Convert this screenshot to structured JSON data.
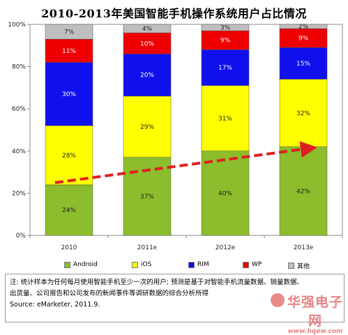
{
  "title": "2010-2013年美国智能手机操作系统用户占比情况",
  "chart_data": {
    "type": "bar",
    "stacked": true,
    "categories": [
      "2010",
      "2011e",
      "2012e",
      "2013e"
    ],
    "series": [
      {
        "name": "Android",
        "color": "#8cbd2c",
        "values": [
          24,
          37,
          40,
          42
        ],
        "labels": [
          "24%",
          "37%",
          "40%",
          "42%"
        ]
      },
      {
        "name": "iOS",
        "color": "#ffff00",
        "values": [
          28,
          29,
          31,
          32
        ],
        "labels": [
          "28%",
          "29%",
          "31%",
          "32%"
        ]
      },
      {
        "name": "RIM",
        "color": "#1010ee",
        "values": [
          30,
          20,
          17,
          15
        ],
        "labels": [
          "30%",
          "20%",
          "17%",
          "15%"
        ]
      },
      {
        "name": "WP",
        "color": "#ee0000",
        "values": [
          11,
          10,
          9,
          9
        ],
        "labels": [
          "11%",
          "10%",
          "9%",
          "9%"
        ]
      },
      {
        "name": "其他",
        "color": "#bfbfbf",
        "values": [
          7,
          4,
          3,
          2
        ],
        "labels": [
          "7%",
          "4%",
          "3%",
          "2%"
        ]
      }
    ],
    "yticks": [
      "0%",
      "20%",
      "40%",
      "60%",
      "80%",
      "100%"
    ],
    "ylim": [
      0,
      100
    ],
    "legend_position": "bottom",
    "grid": false,
    "annotation": {
      "type": "dashed-arrow",
      "color": "#e02020",
      "from": {
        "category": "2010",
        "value": 24
      },
      "to": {
        "category": "2013e",
        "value": 42
      }
    }
  },
  "notes": {
    "line1": "注: 统计样本为任何每月使用智能手机至少一次的用户; 预测是基于对智能手机流量数据、销量数据、",
    "line2": "出货量、公司报告和公司发布的新闻事件等调研数据的综合分析所得",
    "source": "Source: eMarketer, 2011.9."
  },
  "watermark": {
    "line1": "华强电子网",
    "line2": "www.hqew.com"
  }
}
